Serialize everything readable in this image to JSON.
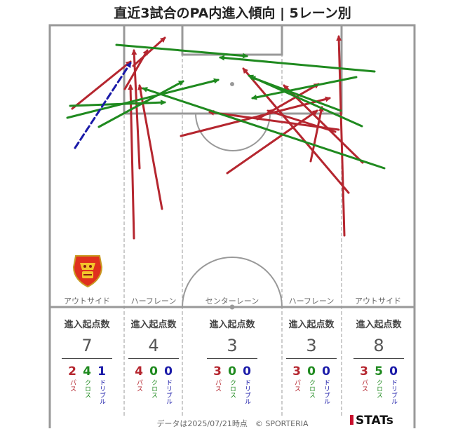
{
  "title": "直近3試合のPA内進入傾向 | 5レーン別",
  "colors": {
    "pass": "#b5262f",
    "cross": "#1f8a1f",
    "dribble": "#1a1aa8"
  },
  "lanes": [
    {
      "name": "アウトサイド",
      "stat_header": "進入起点数",
      "total": "7",
      "pass": "2",
      "cross": "4",
      "dribble": "1"
    },
    {
      "name": "ハーフレーン",
      "stat_header": "進入起点数",
      "total": "4",
      "pass": "4",
      "cross": "0",
      "dribble": "0"
    },
    {
      "name": "センターレーン",
      "stat_header": "進入起点数",
      "total": "3",
      "pass": "3",
      "cross": "0",
      "dribble": "0"
    },
    {
      "name": "ハーフレーン",
      "stat_header": "進入起点数",
      "total": "3",
      "pass": "3",
      "cross": "0",
      "dribble": "0"
    },
    {
      "name": "アウトサイド",
      "stat_header": "進入起点数",
      "total": "8",
      "pass": "3",
      "cross": "5",
      "dribble": "0"
    }
  ],
  "labels": {
    "pass": "パス",
    "cross": "クロス",
    "dribble": "ドリブル"
  },
  "footer": "データは2025/07/21時点　© SPORTERIA",
  "brand": "STATs",
  "chart_data": {
    "type": "arrow-map",
    "title": "直近3試合のPA内進入傾向 | 5レーン別",
    "lanes": [
      "アウトサイド",
      "ハーフレーン",
      "センターレーン",
      "ハーフレーン",
      "アウトサイド"
    ],
    "arrows": [
      {
        "kind": "pass",
        "from": [
          103,
          155
        ],
        "to": [
          186,
          88
        ]
      },
      {
        "kind": "pass",
        "from": [
          178,
          127
        ],
        "to": [
          210,
          72
        ]
      },
      {
        "kind": "pass",
        "from": [
          199,
          240
        ],
        "to": [
          191,
          72
        ]
      },
      {
        "kind": "pass",
        "from": [
          231,
          298
        ],
        "to": [
          199,
          122
        ]
      },
      {
        "kind": "pass",
        "from": [
          191,
          340
        ],
        "to": [
          186,
          122
        ]
      },
      {
        "kind": "pass",
        "from": [
          190,
          94
        ],
        "to": [
          235,
          54
        ]
      },
      {
        "kind": "pass",
        "from": [
          483,
          185
        ],
        "to": [
          299,
          160
        ]
      },
      {
        "kind": "pass",
        "from": [
          324,
          247
        ],
        "to": [
          452,
          158
        ]
      },
      {
        "kind": "pass",
        "from": [
          497,
          275
        ],
        "to": [
          347,
          98
        ]
      },
      {
        "kind": "pass",
        "from": [
          258,
          194
        ],
        "to": [
          470,
          140
        ]
      },
      {
        "kind": "pass",
        "from": [
          517,
          232
        ],
        "to": [
          405,
          122
        ]
      },
      {
        "kind": "pass",
        "from": [
          478,
          188
        ],
        "to": [
          382,
          158
        ]
      },
      {
        "kind": "pass",
        "from": [
          443,
          230
        ],
        "to": [
          459,
          153
        ]
      },
      {
        "kind": "pass",
        "from": [
          491,
          336
        ],
        "to": [
          483,
          52
        ]
      },
      {
        "kind": "pass",
        "from": [
          367,
          170
        ],
        "to": [
          454,
          120
        ]
      },
      {
        "kind": "cross",
        "from": [
          166,
          64
        ],
        "to": [
          352,
          80
        ]
      },
      {
        "kind": "cross",
        "from": [
          96,
          168
        ],
        "to": [
          311,
          114
        ]
      },
      {
        "kind": "cross",
        "from": [
          100,
          151
        ],
        "to": [
          235,
          146
        ]
      },
      {
        "kind": "cross",
        "from": [
          141,
          181
        ],
        "to": [
          261,
          116
        ]
      },
      {
        "kind": "cross",
        "from": [
          548,
          240
        ],
        "to": [
          204,
          126
        ]
      },
      {
        "kind": "cross",
        "from": [
          534,
          102
        ],
        "to": [
          314,
          82
        ]
      },
      {
        "kind": "cross",
        "from": [
          508,
          110
        ],
        "to": [
          360,
          140
        ]
      },
      {
        "kind": "cross",
        "from": [
          486,
          158
        ],
        "to": [
          358,
          110
        ]
      },
      {
        "kind": "cross",
        "from": [
          516,
          180
        ],
        "to": [
          355,
          108
        ]
      },
      {
        "kind": "dribble",
        "from": [
          107,
          211
        ],
        "to": [
          186,
          90
        ]
      }
    ]
  }
}
